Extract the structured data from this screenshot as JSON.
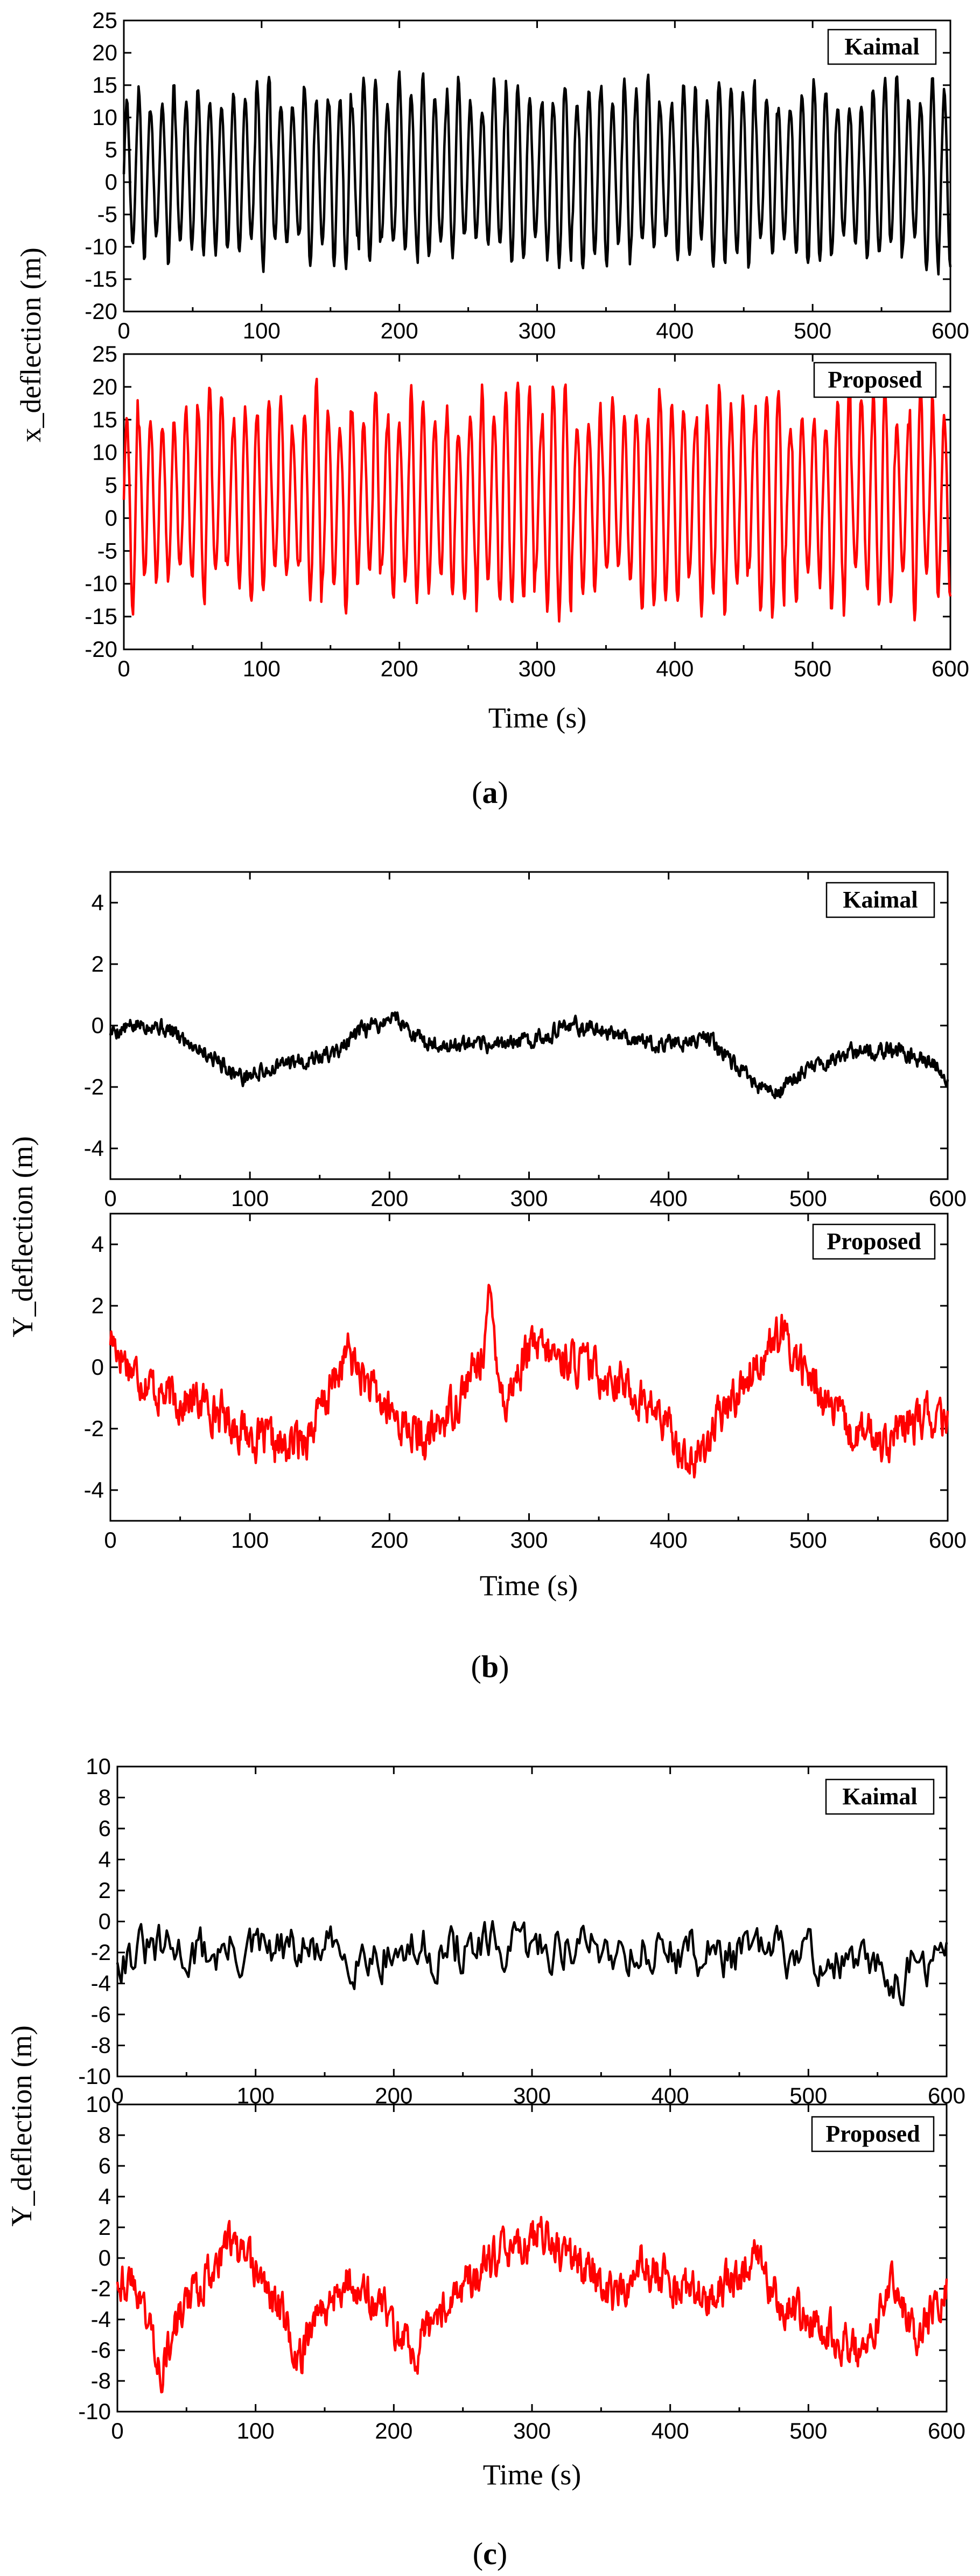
{
  "chart_data": [
    {
      "id": "a",
      "type": "line",
      "caption": {
        "open": "(",
        "letter": "a",
        "close": ")"
      },
      "ylabel": "x_deflection (m)",
      "xlabel": "Time (s)",
      "panels": [
        {
          "legend": "Kaimal",
          "series": {
            "name": "Kaimal",
            "color": "#000000"
          },
          "xlim": [
            0,
            600
          ],
          "ylim": [
            -20,
            25
          ],
          "xticks": [
            0,
            100,
            200,
            300,
            400,
            500,
            600
          ],
          "yticks": [
            -20,
            -15,
            -10,
            -5,
            0,
            5,
            10,
            15,
            20,
            25
          ],
          "signal": {
            "kind": "oscillation",
            "period": 8.6,
            "mean": 1.5,
            "amplitude": 12.5,
            "amp_var": 2.8,
            "noise": 0.6,
            "samples": 900,
            "seed": 11
          }
        },
        {
          "legend": "Proposed",
          "series": {
            "name": "Proposed",
            "color": "#ff0000"
          },
          "xlim": [
            0,
            600
          ],
          "ylim": [
            -20,
            25
          ],
          "xticks": [
            0,
            100,
            200,
            300,
            400,
            500,
            600
          ],
          "yticks": [
            -20,
            -15,
            -10,
            -5,
            0,
            5,
            10,
            15,
            20,
            25
          ],
          "signal": {
            "kind": "oscillation",
            "period": 8.6,
            "mean": 3,
            "amplitude": 14,
            "amp_var": 4,
            "noise": 0.8,
            "samples": 900,
            "seed": 23
          }
        }
      ]
    },
    {
      "id": "b",
      "type": "line",
      "caption": {
        "open": "(",
        "letter": "b",
        "close": ")"
      },
      "ylabel": "Y_deflection (m)",
      "xlabel": "Time (s)",
      "panels": [
        {
          "legend": "Kaimal",
          "series": {
            "name": "Kaimal",
            "color": "#000000"
          },
          "xlim": [
            0,
            600
          ],
          "ylim": [
            -5,
            5
          ],
          "xticks": [
            0,
            100,
            200,
            300,
            400,
            500,
            600
          ],
          "yticks": [
            -4,
            -2,
            0,
            2,
            4
          ],
          "signal": {
            "kind": "random",
            "knots": [
              [
                0,
                -0.2
              ],
              [
                30,
                0.1
              ],
              [
                60,
                -0.6
              ],
              [
                95,
                -1.7
              ],
              [
                130,
                -1.2
              ],
              [
                160,
                -0.9
              ],
              [
                180,
                -0.2
              ],
              [
                205,
                0.3
              ],
              [
                225,
                -0.6
              ],
              [
                260,
                -0.7
              ],
              [
                300,
                -0.5
              ],
              [
                330,
                0.0
              ],
              [
                360,
                -0.2
              ],
              [
                390,
                -0.6
              ],
              [
                430,
                -0.4
              ],
              [
                450,
                -1.5
              ],
              [
                475,
                -2.3
              ],
              [
                500,
                -1.4
              ],
              [
                530,
                -0.9
              ],
              [
                560,
                -0.8
              ],
              [
                590,
                -1.2
              ],
              [
                600,
                -1.7
              ]
            ],
            "noise": 0.22,
            "samples": 1100,
            "seed": 5
          }
        },
        {
          "legend": "Proposed",
          "series": {
            "name": "Proposed",
            "color": "#ff0000"
          },
          "xlim": [
            0,
            600
          ],
          "ylim": [
            -5,
            5
          ],
          "xticks": [
            0,
            100,
            200,
            300,
            400,
            500,
            600
          ],
          "yticks": [
            -4,
            -2,
            0,
            2,
            4
          ],
          "signal": {
            "kind": "random",
            "knots": [
              [
                0,
                1.0
              ],
              [
                15,
                0.0
              ],
              [
                40,
                -1.0
              ],
              [
                70,
                -1.2
              ],
              [
                100,
                -2.2
              ],
              [
                125,
                -2.7
              ],
              [
                145,
                -2.0
              ],
              [
                170,
                0.5
              ],
              [
                190,
                -1.0
              ],
              [
                225,
                -2.5
              ],
              [
                245,
                -1.3
              ],
              [
                265,
                0.2
              ],
              [
                272,
                2.2
              ],
              [
                282,
                -1.2
              ],
              [
                300,
                0.6
              ],
              [
                330,
                0.2
              ],
              [
                360,
                -0.3
              ],
              [
                390,
                -1.4
              ],
              [
                418,
                -3.2
              ],
              [
                440,
                -1.4
              ],
              [
                470,
                0.6
              ],
              [
                482,
                1.0
              ],
              [
                500,
                -0.3
              ],
              [
                530,
                -2.2
              ],
              [
                560,
                -2.3
              ],
              [
                585,
                -1.6
              ],
              [
                600,
                -2.0
              ]
            ],
            "noise": 0.55,
            "samples": 1100,
            "seed": 17
          }
        }
      ]
    },
    {
      "id": "c",
      "type": "line",
      "caption": {
        "open": "(",
        "letter": "c",
        "close": ")"
      },
      "ylabel": "Y_deflection (m)",
      "xlabel": "Time (s)",
      "panels": [
        {
          "legend": "Kaimal",
          "series": {
            "name": "Kaimal",
            "color": "#000000"
          },
          "xlim": [
            0,
            600
          ],
          "ylim": [
            -10,
            10
          ],
          "xticks": [
            0,
            100,
            200,
            300,
            400,
            500,
            600
          ],
          "yticks": [
            -10,
            -8,
            -6,
            -4,
            -2,
            0,
            2,
            4,
            6,
            8,
            10
          ],
          "signal": {
            "kind": "random",
            "knots": [
              [
                0,
                -2.0
              ],
              [
                100,
                -2.0
              ],
              [
                200,
                -2.0
              ],
              [
                300,
                -1.8
              ],
              [
                325,
                -1.5
              ],
              [
                400,
                -2.0
              ],
              [
                500,
                -2.2
              ],
              [
                560,
                -3.5
              ],
              [
                600,
                -2.5
              ]
            ],
            "noise": 1.3,
            "samples": 420,
            "seed": 31
          }
        },
        {
          "legend": "Proposed",
          "series": {
            "name": "Proposed",
            "color": "#ff0000"
          },
          "xlim": [
            0,
            600
          ],
          "ylim": [
            -10,
            10
          ],
          "xticks": [
            0,
            100,
            200,
            300,
            400,
            500,
            600
          ],
          "yticks": [
            -10,
            -8,
            -6,
            -4,
            -2,
            0,
            2,
            4,
            6,
            8,
            10
          ],
          "signal": {
            "kind": "random",
            "knots": [
              [
                0,
                -1.0
              ],
              [
                15,
                -2.0
              ],
              [
                32,
                -7.0
              ],
              [
                50,
                -3.0
              ],
              [
                80,
                1.0
              ],
              [
                100,
                -1.0
              ],
              [
                120,
                -3.5
              ],
              [
                130,
                -7.0
              ],
              [
                145,
                -3.5
              ],
              [
                165,
                -1.5
              ],
              [
                190,
                -3.0
              ],
              [
                215,
                -6.5
              ],
              [
                240,
                -2.5
              ],
              [
                270,
                -0.5
              ],
              [
                305,
                1.5
              ],
              [
                330,
                0.0
              ],
              [
                360,
                -2.5
              ],
              [
                380,
                -0.5
              ],
              [
                400,
                -1.5
              ],
              [
                430,
                -3.0
              ],
              [
                460,
                0.5
              ],
              [
                480,
                -3.0
              ],
              [
                500,
                -4.0
              ],
              [
                520,
                -5.0
              ],
              [
                540,
                -6.5
              ],
              [
                560,
                -2.0
              ],
              [
                580,
                -5.0
              ],
              [
                600,
                -1.5
              ]
            ],
            "noise": 1.1,
            "samples": 1000,
            "seed": 43
          }
        }
      ]
    }
  ]
}
